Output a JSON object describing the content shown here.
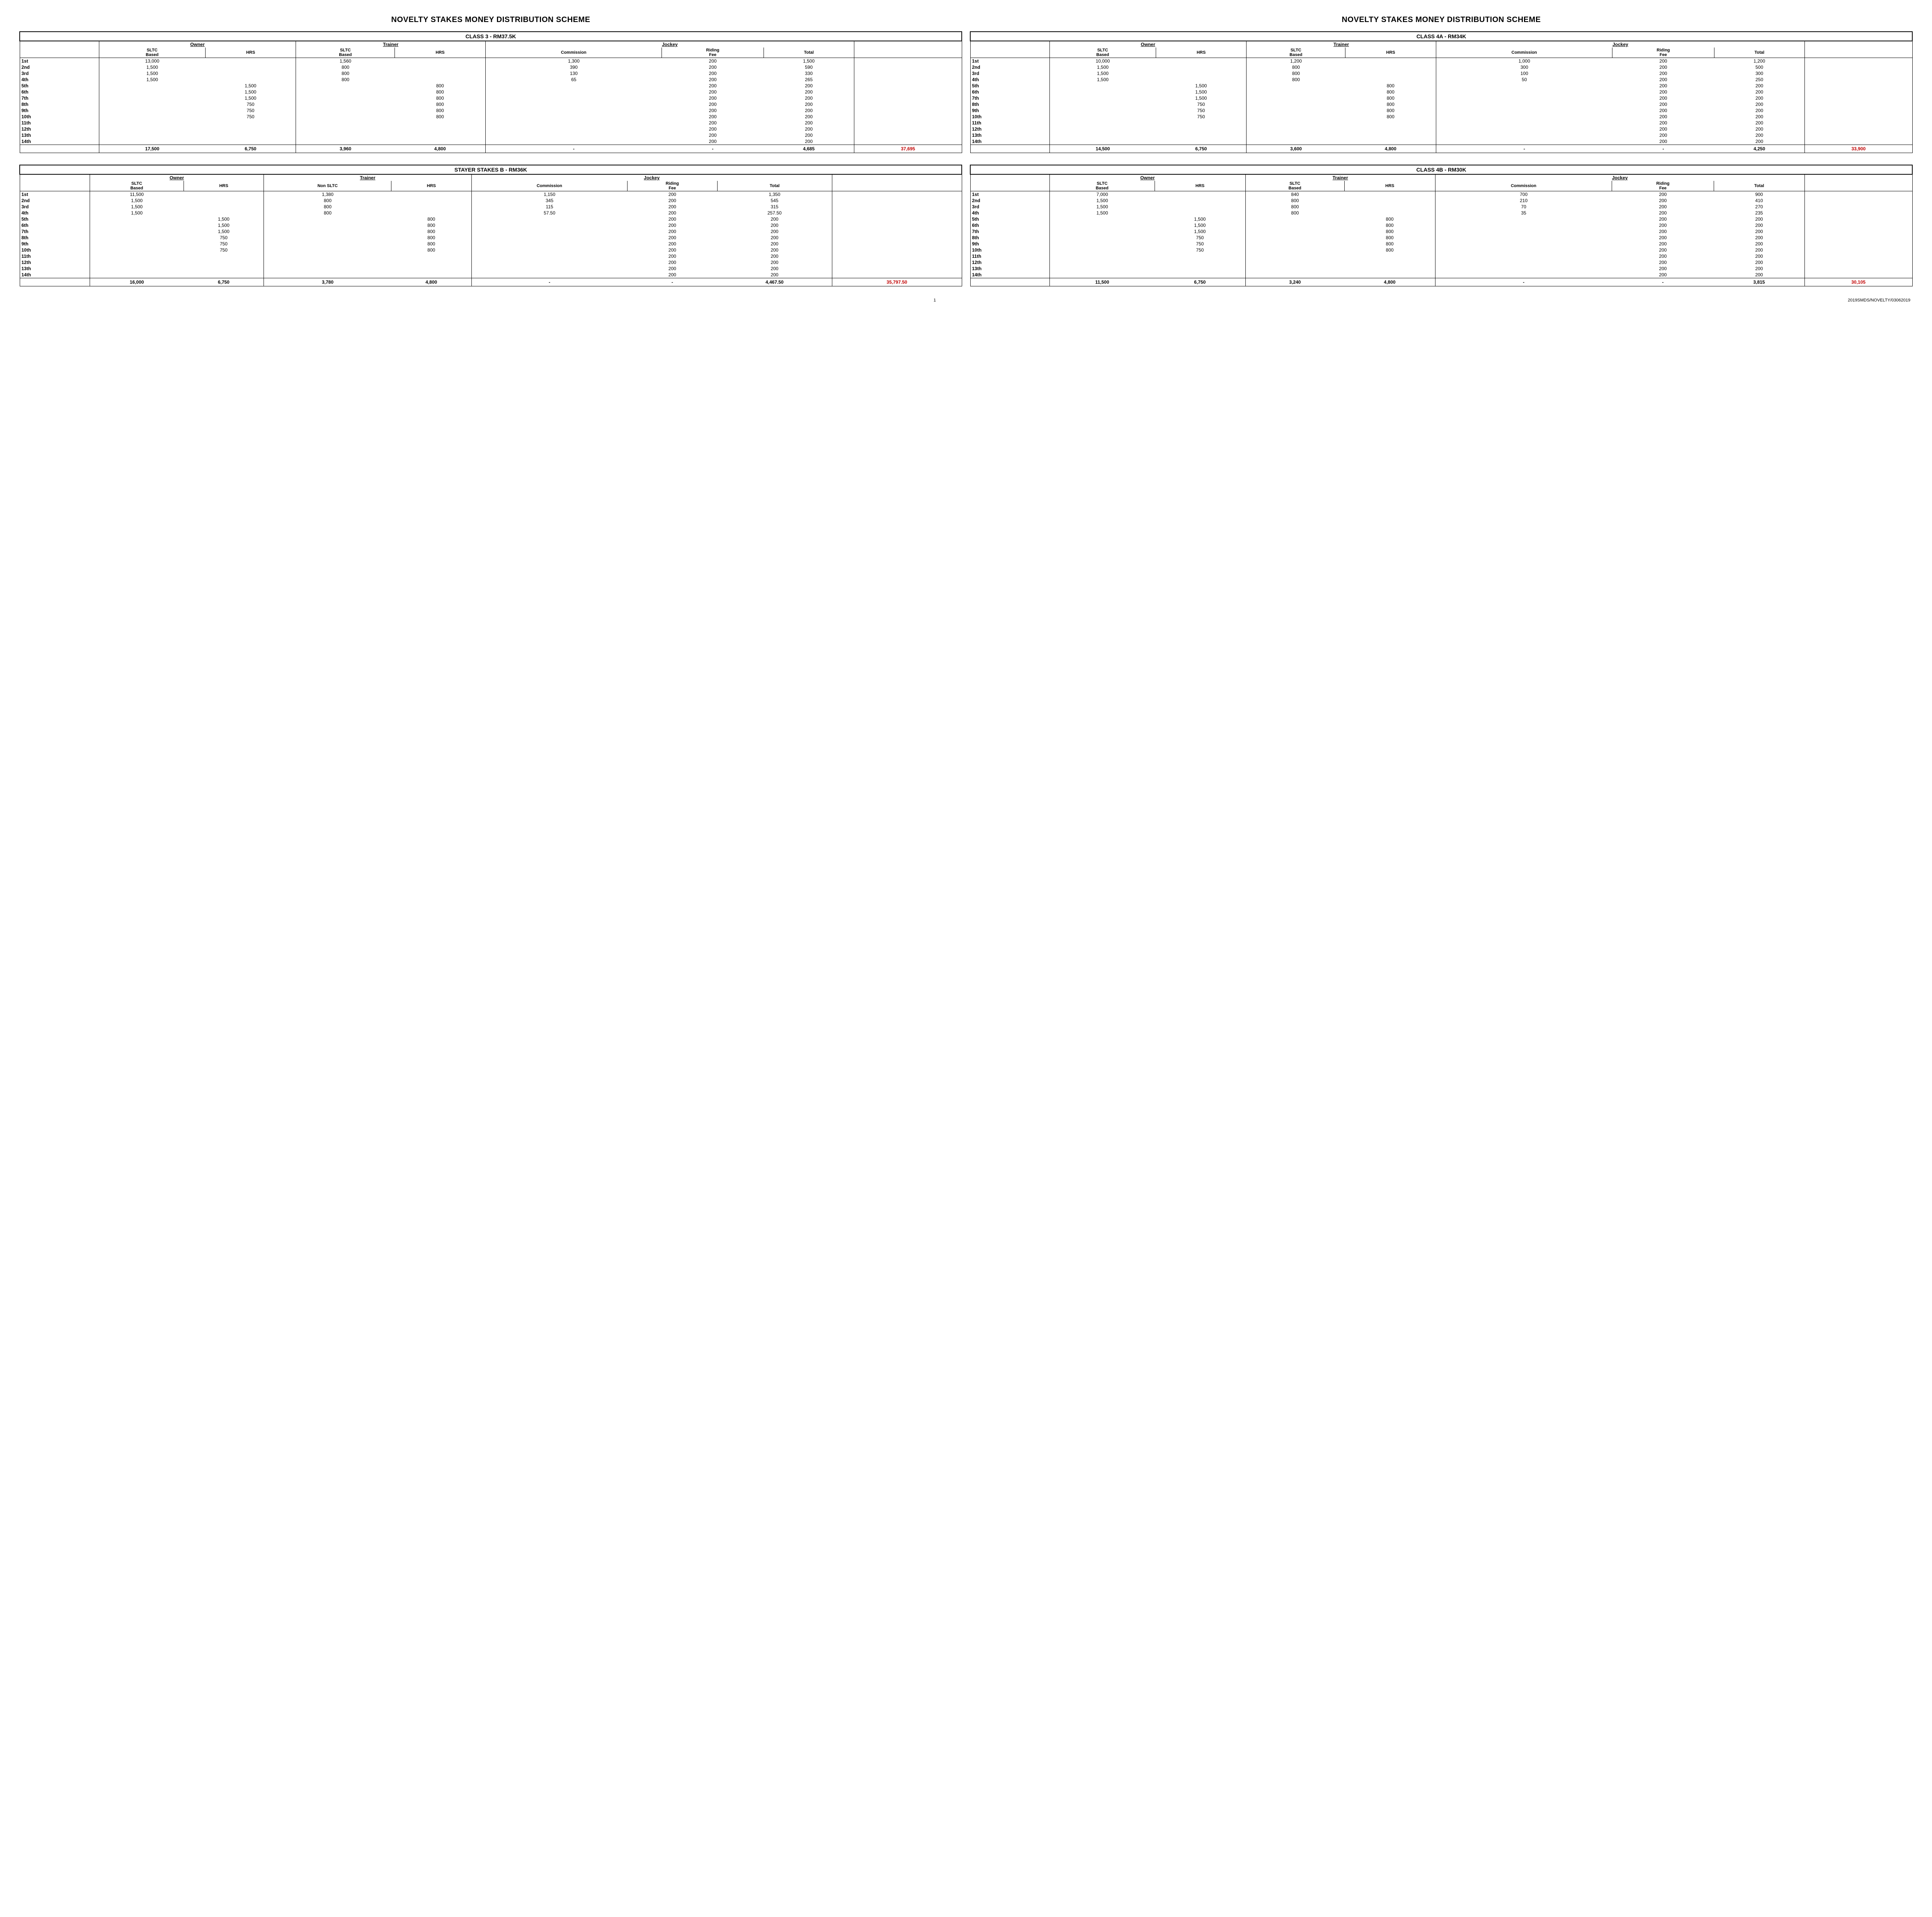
{
  "pageTitle": "NOVELTY STAKES MONEY DISTRIBUTION SCHEME",
  "footer": {
    "pageNum": "1",
    "ref": "2019SMDS/NOVELTY/03062019"
  },
  "groups": {
    "owner": "Owner",
    "trainer": "Trainer",
    "jockey": "Jockey"
  },
  "subheads": {
    "sltc": "SLTC\nBased",
    "nonsltc": "Non SLTC",
    "hrs": "HRS",
    "commission": "Commission",
    "riding": "Riding\nFee",
    "total": "Total"
  },
  "positions": [
    "1st",
    "2nd",
    "3rd",
    "4th",
    "5th",
    "6th",
    "7th",
    "8th",
    "9th",
    "10th",
    "11th",
    "12th",
    "13th",
    "14th"
  ],
  "tables": [
    {
      "id": "class3",
      "title": "CLASS 3 - RM37.5K",
      "showSchemeTitle": true,
      "trainerCol1Label": "sltc",
      "rows": [
        {
          "o1": "13,000",
          "o2": "",
          "t1": "1,560",
          "t2": "",
          "jc": "1,300",
          "jr": "200",
          "jt": "1,500"
        },
        {
          "o1": "1,500",
          "o2": "",
          "t1": "800",
          "t2": "",
          "jc": "390",
          "jr": "200",
          "jt": "590"
        },
        {
          "o1": "1,500",
          "o2": "",
          "t1": "800",
          "t2": "",
          "jc": "130",
          "jr": "200",
          "jt": "330"
        },
        {
          "o1": "1,500",
          "o2": "",
          "t1": "800",
          "t2": "",
          "jc": "65",
          "jr": "200",
          "jt": "265"
        },
        {
          "o1": "",
          "o2": "1,500",
          "t1": "",
          "t2": "800",
          "jc": "",
          "jr": "200",
          "jt": "200"
        },
        {
          "o1": "",
          "o2": "1,500",
          "t1": "",
          "t2": "800",
          "jc": "",
          "jr": "200",
          "jt": "200"
        },
        {
          "o1": "",
          "o2": "1,500",
          "t1": "",
          "t2": "800",
          "jc": "",
          "jr": "200",
          "jt": "200"
        },
        {
          "o1": "",
          "o2": "750",
          "t1": "",
          "t2": "800",
          "jc": "",
          "jr": "200",
          "jt": "200"
        },
        {
          "o1": "",
          "o2": "750",
          "t1": "",
          "t2": "800",
          "jc": "",
          "jr": "200",
          "jt": "200"
        },
        {
          "o1": "",
          "o2": "750",
          "t1": "",
          "t2": "800",
          "jc": "",
          "jr": "200",
          "jt": "200"
        },
        {
          "o1": "",
          "o2": "",
          "t1": "",
          "t2": "",
          "jc": "",
          "jr": "200",
          "jt": "200"
        },
        {
          "o1": "",
          "o2": "",
          "t1": "",
          "t2": "",
          "jc": "",
          "jr": "200",
          "jt": "200"
        },
        {
          "o1": "",
          "o2": "",
          "t1": "",
          "t2": "",
          "jc": "",
          "jr": "200",
          "jt": "200"
        },
        {
          "o1": "",
          "o2": "",
          "t1": "",
          "t2": "",
          "jc": "",
          "jr": "200",
          "jt": "200"
        }
      ],
      "totals": {
        "o1": "17,500",
        "o2": "6,750",
        "t1": "3,960",
        "t2": "4,800",
        "jc": "-",
        "jr": "-",
        "jt": "4,685",
        "grand": "37,695"
      }
    },
    {
      "id": "class4a",
      "title": "CLASS 4A - RM34K",
      "showSchemeTitle": true,
      "trainerCol1Label": "sltc",
      "rows": [
        {
          "o1": "10,000",
          "o2": "",
          "t1": "1,200",
          "t2": "",
          "jc": "1,000",
          "jr": "200",
          "jt": "1,200"
        },
        {
          "o1": "1,500",
          "o2": "",
          "t1": "800",
          "t2": "",
          "jc": "300",
          "jr": "200",
          "jt": "500"
        },
        {
          "o1": "1,500",
          "o2": "",
          "t1": "800",
          "t2": "",
          "jc": "100",
          "jr": "200",
          "jt": "300"
        },
        {
          "o1": "1,500",
          "o2": "",
          "t1": "800",
          "t2": "",
          "jc": "50",
          "jr": "200",
          "jt": "250"
        },
        {
          "o1": "",
          "o2": "1,500",
          "t1": "",
          "t2": "800",
          "jc": "",
          "jr": "200",
          "jt": "200"
        },
        {
          "o1": "",
          "o2": "1,500",
          "t1": "",
          "t2": "800",
          "jc": "",
          "jr": "200",
          "jt": "200"
        },
        {
          "o1": "",
          "o2": "1,500",
          "t1": "",
          "t2": "800",
          "jc": "",
          "jr": "200",
          "jt": "200"
        },
        {
          "o1": "",
          "o2": "750",
          "t1": "",
          "t2": "800",
          "jc": "",
          "jr": "200",
          "jt": "200"
        },
        {
          "o1": "",
          "o2": "750",
          "t1": "",
          "t2": "800",
          "jc": "",
          "jr": "200",
          "jt": "200"
        },
        {
          "o1": "",
          "o2": "750",
          "t1": "",
          "t2": "800",
          "jc": "",
          "jr": "200",
          "jt": "200"
        },
        {
          "o1": "",
          "o2": "",
          "t1": "",
          "t2": "",
          "jc": "",
          "jr": "200",
          "jt": "200"
        },
        {
          "o1": "",
          "o2": "",
          "t1": "",
          "t2": "",
          "jc": "",
          "jr": "200",
          "jt": "200"
        },
        {
          "o1": "",
          "o2": "",
          "t1": "",
          "t2": "",
          "jc": "",
          "jr": "200",
          "jt": "200"
        },
        {
          "o1": "",
          "o2": "",
          "t1": "",
          "t2": "",
          "jc": "",
          "jr": "200",
          "jt": "200"
        }
      ],
      "totals": {
        "o1": "14,500",
        "o2": "6,750",
        "t1": "3,600",
        "t2": "4,800",
        "jc": "-",
        "jr": "-",
        "jt": "4,250",
        "grand": "33,900"
      }
    },
    {
      "id": "stayerb",
      "title": "STAYER STAKES B - RM36K",
      "showSchemeTitle": false,
      "trainerCol1Label": "nonsltc",
      "rows": [
        {
          "o1": "11,500",
          "o2": "",
          "t1": "1,380",
          "t2": "",
          "jc": "1,150",
          "jr": "200",
          "jt": "1,350"
        },
        {
          "o1": "1,500",
          "o2": "",
          "t1": "800",
          "t2": "",
          "jc": "345",
          "jr": "200",
          "jt": "545"
        },
        {
          "o1": "1,500",
          "o2": "",
          "t1": "800",
          "t2": "",
          "jc": "115",
          "jr": "200",
          "jt": "315"
        },
        {
          "o1": "1,500",
          "o2": "",
          "t1": "800",
          "t2": "",
          "jc": "57.50",
          "jr": "200",
          "jt": "257.50"
        },
        {
          "o1": "",
          "o2": "1,500",
          "t1": "",
          "t2": "800",
          "jc": "",
          "jr": "200",
          "jt": "200"
        },
        {
          "o1": "",
          "o2": "1,500",
          "t1": "",
          "t2": "800",
          "jc": "",
          "jr": "200",
          "jt": "200"
        },
        {
          "o1": "",
          "o2": "1,500",
          "t1": "",
          "t2": "800",
          "jc": "",
          "jr": "200",
          "jt": "200"
        },
        {
          "o1": "",
          "o2": "750",
          "t1": "",
          "t2": "800",
          "jc": "",
          "jr": "200",
          "jt": "200"
        },
        {
          "o1": "",
          "o2": "750",
          "t1": "",
          "t2": "800",
          "jc": "",
          "jr": "200",
          "jt": "200"
        },
        {
          "o1": "",
          "o2": "750",
          "t1": "",
          "t2": "800",
          "jc": "",
          "jr": "200",
          "jt": "200"
        },
        {
          "o1": "",
          "o2": "",
          "t1": "",
          "t2": "",
          "jc": "",
          "jr": "200",
          "jt": "200"
        },
        {
          "o1": "",
          "o2": "",
          "t1": "",
          "t2": "",
          "jc": "",
          "jr": "200",
          "jt": "200"
        },
        {
          "o1": "",
          "o2": "",
          "t1": "",
          "t2": "",
          "jc": "",
          "jr": "200",
          "jt": "200"
        },
        {
          "o1": "",
          "o2": "",
          "t1": "",
          "t2": "",
          "jc": "",
          "jr": "200",
          "jt": "200"
        }
      ],
      "totals": {
        "o1": "16,000",
        "o2": "6,750",
        "t1": "3,780",
        "t2": "4,800",
        "jc": "-",
        "jr": "-",
        "jt": "4,467.50",
        "grand": "35,797.50"
      }
    },
    {
      "id": "class4b",
      "title": "CLASS 4B - RM30K",
      "showSchemeTitle": false,
      "trainerCol1Label": "sltc",
      "rows": [
        {
          "o1": "7,000",
          "o2": "",
          "t1": "840",
          "t2": "",
          "jc": "700",
          "jr": "200",
          "jt": "900"
        },
        {
          "o1": "1,500",
          "o2": "",
          "t1": "800",
          "t2": "",
          "jc": "210",
          "jr": "200",
          "jt": "410"
        },
        {
          "o1": "1,500",
          "o2": "",
          "t1": "800",
          "t2": "",
          "jc": "70",
          "jr": "200",
          "jt": "270"
        },
        {
          "o1": "1,500",
          "o2": "",
          "t1": "800",
          "t2": "",
          "jc": "35",
          "jr": "200",
          "jt": "235"
        },
        {
          "o1": "",
          "o2": "1,500",
          "t1": "",
          "t2": "800",
          "jc": "",
          "jr": "200",
          "jt": "200"
        },
        {
          "o1": "",
          "o2": "1,500",
          "t1": "",
          "t2": "800",
          "jc": "",
          "jr": "200",
          "jt": "200"
        },
        {
          "o1": "",
          "o2": "1,500",
          "t1": "",
          "t2": "800",
          "jc": "",
          "jr": "200",
          "jt": "200"
        },
        {
          "o1": "",
          "o2": "750",
          "t1": "",
          "t2": "800",
          "jc": "",
          "jr": "200",
          "jt": "200"
        },
        {
          "o1": "",
          "o2": "750",
          "t1": "",
          "t2": "800",
          "jc": "",
          "jr": "200",
          "jt": "200"
        },
        {
          "o1": "",
          "o2": "750",
          "t1": "",
          "t2": "800",
          "jc": "",
          "jr": "200",
          "jt": "200"
        },
        {
          "o1": "",
          "o2": "",
          "t1": "",
          "t2": "",
          "jc": "",
          "jr": "200",
          "jt": "200"
        },
        {
          "o1": "",
          "o2": "",
          "t1": "",
          "t2": "",
          "jc": "",
          "jr": "200",
          "jt": "200"
        },
        {
          "o1": "",
          "o2": "",
          "t1": "",
          "t2": "",
          "jc": "",
          "jr": "200",
          "jt": "200"
        },
        {
          "o1": "",
          "o2": "",
          "t1": "",
          "t2": "",
          "jc": "",
          "jr": "200",
          "jt": "200"
        }
      ],
      "totals": {
        "o1": "11,500",
        "o2": "6,750",
        "t1": "3,240",
        "t2": "4,800",
        "jc": "-",
        "jr": "-",
        "jt": "3,815",
        "grand": "30,105"
      }
    }
  ]
}
